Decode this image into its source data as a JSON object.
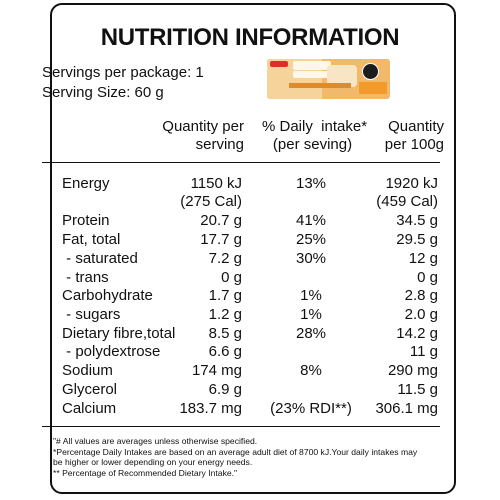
{
  "title": "NUTRITION INFORMATION",
  "servings_per_package": "Servings per package: 1",
  "serving_size": "Serving Size: 60 g",
  "headers": {
    "qty_serving": [
      "Quantity per",
      "serving"
    ],
    "daily_intake": [
      "% Daily  intake*",
      "(per seving)"
    ],
    "qty_100g": [
      "Quantity",
      "per 100g"
    ]
  },
  "rows": [
    {
      "name": "Energy",
      "serving": "1150 kJ",
      "daily": "13%",
      "per100": "1920 kJ"
    },
    {
      "name": "",
      "serving": "(275 Cal)",
      "daily": "",
      "per100": "(459 Cal)"
    },
    {
      "name": "Protein",
      "serving": "20.7 g",
      "daily": "41%",
      "per100": "34.5 g"
    },
    {
      "name": "Fat, total",
      "serving": "17.7 g",
      "daily": "25%",
      "per100": "29.5 g"
    },
    {
      "name": " - saturated",
      "serving": "7.2 g",
      "daily": "30%",
      "per100": "12 g"
    },
    {
      "name": " - trans",
      "serving": "0 g",
      "daily": "",
      "per100": "0 g"
    },
    {
      "name": "Carbohydrate",
      "serving": "1.7 g",
      "daily": "1%",
      "per100": "2.8 g"
    },
    {
      "name": " - sugars",
      "serving": "1.2 g",
      "daily": "1%",
      "per100": "2.0 g"
    },
    {
      "name": "Dietary fibre,total",
      "serving": "8.5 g",
      "daily": "28%",
      "per100": "14.2 g"
    },
    {
      "name": " - polydextrose",
      "serving": "6.6 g",
      "daily": "",
      "per100": "11 g"
    },
    {
      "name": "Sodium",
      "serving": "174 mg",
      "daily": "8%",
      "per100": "290 mg"
    },
    {
      "name": "Glycerol",
      "serving": "6.9 g",
      "daily": "",
      "per100": "11.5 g"
    },
    {
      "name": "Calcium",
      "serving": "183.7 mg",
      "daily": "(23% RDI**)",
      "per100": "306.1 mg"
    }
  ],
  "footnotes": [
    "\"# All values are averages unless otherwise specified.",
    "*Percentage Daily Intakes are based on an average adult diet of 8700 kJ.Your daily intakes may",
    "be higher or lower depending on your energy needs.",
    "** Percentage of Recommended Dietary Intake.\""
  ]
}
